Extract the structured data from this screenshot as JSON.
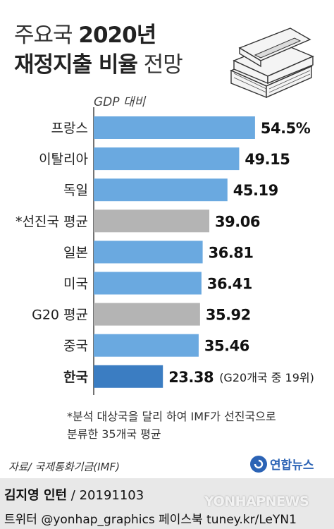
{
  "title": {
    "line1_light": "주요국",
    "line1_bold": "2020년",
    "line2_bold": "재정지출 비율",
    "line2_light": "전망"
  },
  "chart_data": {
    "type": "bar",
    "orientation": "horizontal",
    "ylabel": "GDP 대비",
    "categories": [
      "프랑스",
      "이탈리아",
      "독일",
      "*선진국 평균",
      "일본",
      "미국",
      "G20 평균",
      "중국",
      "한국"
    ],
    "values": [
      54.5,
      49.15,
      45.19,
      39.06,
      36.81,
      36.41,
      35.92,
      35.46,
      23.38
    ],
    "value_labels": [
      "54.5%",
      "49.15",
      "45.19",
      "39.06",
      "36.81",
      "36.41",
      "35.92",
      "35.46",
      "23.38"
    ],
    "highlight_annotation": "(G20개국 중 19위)",
    "bar_types": [
      "country",
      "country",
      "country",
      "average",
      "country",
      "country",
      "average",
      "country",
      "korea"
    ],
    "colors": {
      "country": "#6aa9e0",
      "average": "#b4b4b4",
      "korea": "#3b7dc2",
      "axis": "#444444"
    }
  },
  "note": {
    "line1": "*분석 대상국을 달리 하여 IMF가 선진국으로",
    "line2": "분류한 35개국 평균"
  },
  "source": "자료/ 국제통화기금(IMF)",
  "logo": "연합뉴스",
  "credit": {
    "author": "김지영 인턴",
    "date": " / 20191103",
    "sns": "트위터 @yonhap_graphics  페이스북 tuney.kr/LeYN1"
  },
  "watermark": "YONHAPNEWS"
}
